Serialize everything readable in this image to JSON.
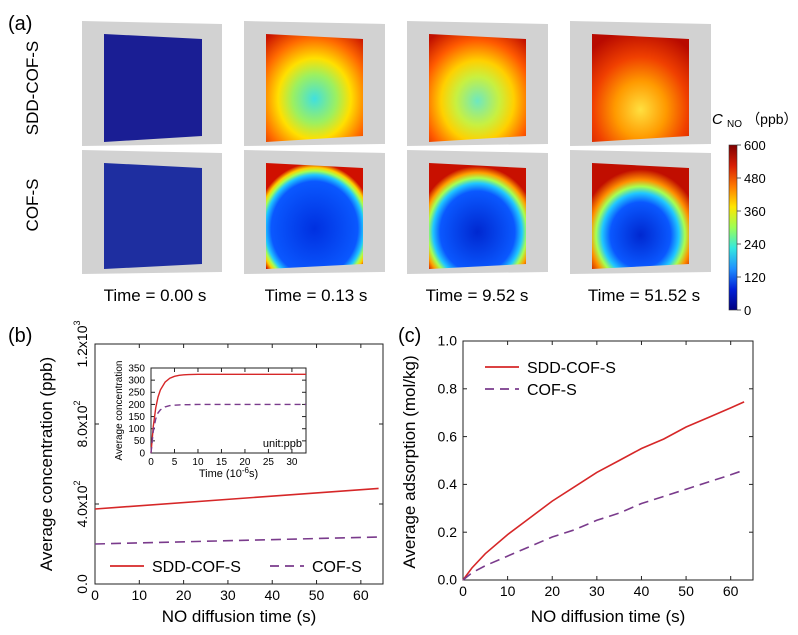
{
  "panels": {
    "a": {
      "label": "(a)",
      "row_labels": [
        "SDD-COF-S",
        "COF-S"
      ],
      "time_labels": [
        "Time = 0.00 s",
        "Time = 0.13 s",
        "Time = 9.52 s",
        "Time = 51.52 s"
      ],
      "colorbar": {
        "title_main": "C",
        "title_sub": "NO",
        "title_unit": "（ppb）",
        "ticks": [
          "600",
          "480",
          "360",
          "240",
          "120",
          "0"
        ],
        "stops": [
          "#7f0000",
          "#d81e05",
          "#ff7a00",
          "#ffe600",
          "#9cff55",
          "#34e8e0",
          "#1f90ff",
          "#0020d8",
          "#000080"
        ]
      }
    },
    "b": {
      "label": "(b)"
    },
    "c": {
      "label": "(c)"
    }
  },
  "chart_data": [
    {
      "panel": "b",
      "type": "line",
      "xlabel": "NO diffusion time (s)",
      "ylabel": "Average concentration (ppb)",
      "xlim": [
        0,
        65
      ],
      "ylim": [
        0,
        1200
      ],
      "xticks": [
        0,
        10,
        20,
        30,
        40,
        50,
        60
      ],
      "yticks": [
        0.0,
        400,
        800,
        1200
      ],
      "ytick_labels": [
        "0.0",
        "4.0x10",
        "8.0x10",
        "1.2x10"
      ],
      "ytick_exponents": [
        "",
        "2",
        "2",
        "3"
      ],
      "legend_position": "bottom",
      "series": [
        {
          "name": "SDD-COF-S",
          "color": "#d62728",
          "dash": "solid",
          "x": [
            0,
            64
          ],
          "y": [
            375,
            478
          ]
        },
        {
          "name": "COF-S",
          "color": "#7a3b8c",
          "dash": "dashed",
          "x": [
            0,
            64
          ],
          "y": [
            200,
            235
          ]
        }
      ],
      "inset": {
        "ylabel": "Average concentration",
        "xlabel": "Time (10",
        "xlabel_exp": "-6",
        "xlabel_tail": "s)",
        "note": "unit:ppb",
        "xlim": [
          0,
          33
        ],
        "ylim": [
          0,
          350
        ],
        "xticks": [
          0,
          5,
          10,
          15,
          20,
          25,
          30
        ],
        "yticks": [
          0,
          50,
          100,
          150,
          200,
          250,
          300,
          350
        ],
        "series": [
          {
            "name": "SDD-COF-S",
            "color": "#d62728",
            "dash": "solid",
            "x": [
              0,
              0.5,
              1,
              1.5,
              2,
              3,
              4,
              5,
              6,
              7,
              8,
              10,
              15,
              20,
              25,
              33
            ],
            "y": [
              0,
              110,
              185,
              230,
              260,
              292,
              308,
              316,
              320,
              322,
              323,
              324,
              324,
              324,
              324,
              324
            ]
          },
          {
            "name": "COF-S",
            "color": "#7a3b8c",
            "dash": "dashed",
            "x": [
              0,
              0.5,
              1,
              1.5,
              2,
              3,
              4,
              5,
              6,
              7,
              8,
              10,
              15,
              20,
              25,
              33
            ],
            "y": [
              0,
              90,
              140,
              165,
              178,
              190,
              195,
              197,
              198,
              199,
              199,
              200,
              200,
              200,
              200,
              200
            ]
          }
        ]
      }
    },
    {
      "panel": "c",
      "type": "line",
      "xlabel": "NO diffusion time (s)",
      "ylabel": "Average adsorption (mol/kg)",
      "xlim": [
        0,
        65
      ],
      "ylim": [
        0,
        1.0
      ],
      "xticks": [
        0,
        10,
        20,
        30,
        40,
        50,
        60
      ],
      "yticks": [
        0.0,
        0.2,
        0.4,
        0.6,
        0.8,
        1.0
      ],
      "ytick_labels": [
        "0.0",
        "0.2",
        "0.4",
        "0.6",
        "0.8",
        "1.0"
      ],
      "legend_position": "top-left",
      "series": [
        {
          "name": "SDD-COF-S",
          "color": "#d62728",
          "dash": "solid",
          "x": [
            0,
            2,
            5,
            10,
            15,
            20,
            25,
            30,
            35,
            40,
            45,
            50,
            55,
            60,
            63
          ],
          "y": [
            0,
            0.05,
            0.11,
            0.19,
            0.26,
            0.33,
            0.39,
            0.45,
            0.5,
            0.55,
            0.59,
            0.64,
            0.68,
            0.72,
            0.745
          ]
        },
        {
          "name": "COF-S",
          "color": "#7a3b8c",
          "dash": "dashed",
          "x": [
            0,
            2,
            5,
            10,
            15,
            20,
            25,
            30,
            35,
            40,
            45,
            50,
            55,
            60,
            63
          ],
          "y": [
            0,
            0.03,
            0.06,
            0.1,
            0.14,
            0.18,
            0.21,
            0.25,
            0.28,
            0.32,
            0.35,
            0.38,
            0.41,
            0.44,
            0.46
          ]
        }
      ]
    }
  ]
}
